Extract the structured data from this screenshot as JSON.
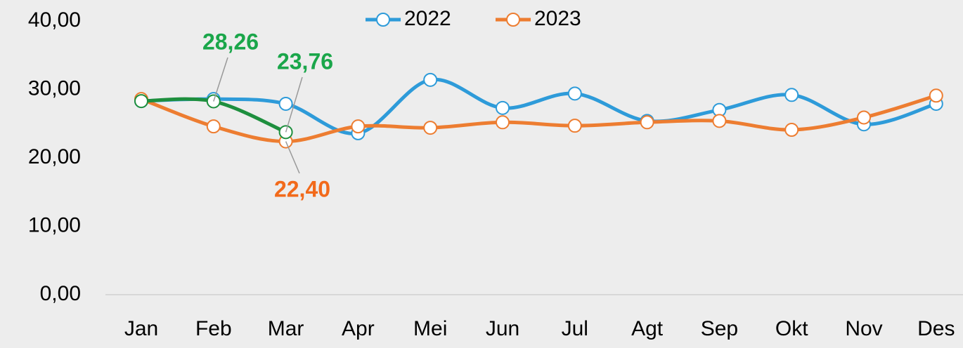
{
  "chart_data": {
    "type": "line",
    "categories": [
      "Jan",
      "Feb",
      "Mar",
      "Apr",
      "Mei",
      "Jun",
      "Jul",
      "Agt",
      "Sep",
      "Okt",
      "Nov",
      "Des"
    ],
    "series": [
      {
        "name": "2022",
        "color": "#2e9bd9",
        "values": [
          28.3,
          28.6,
          27.9,
          23.6,
          31.4,
          27.3,
          29.4,
          25.4,
          27.0,
          29.2,
          24.9,
          27.9
        ]
      },
      {
        "name": "2023",
        "color": "#ed7d31",
        "values": [
          28.6,
          24.6,
          22.4,
          24.6,
          24.4,
          25.2,
          24.7,
          25.2,
          25.4,
          24.1,
          25.9,
          29.1
        ],
        "value_labels": [
          null,
          null,
          "22,40",
          null,
          null,
          null,
          null,
          null,
          null,
          null,
          null,
          null
        ],
        "label_color": "#f26a1b"
      },
      {
        "color": "#1e8f3e",
        "values": [
          28.3,
          28.26,
          23.76,
          null,
          null,
          null,
          null,
          null,
          null,
          null,
          null,
          null
        ],
        "value_labels": [
          null,
          "28,26",
          "23,76",
          null,
          null,
          null,
          null,
          null,
          null,
          null,
          null,
          null
        ],
        "label_color": "#1aa64a"
      }
    ],
    "ylim": [
      0,
      40
    ],
    "yticks": [
      {
        "value": 0,
        "label": "0,00"
      },
      {
        "value": 10,
        "label": "10,00"
      },
      {
        "value": 20,
        "label": "20,00"
      },
      {
        "value": 30,
        "label": "30,00"
      },
      {
        "value": 40,
        "label": "40,00"
      }
    ],
    "grid": false,
    "legend": "top"
  }
}
